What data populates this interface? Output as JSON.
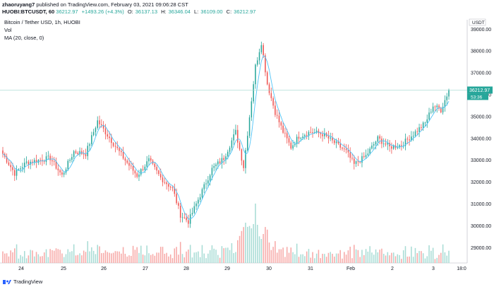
{
  "header": {
    "publisher": "zhaoruyang7",
    "published_text": "published on TradingView.com, February 03, 2021 09:06:28 CST",
    "symbol_interval": "HUOBI:BTCUSDT, 60",
    "last": "36212.97",
    "change": "+1493.26 (+4.3%)",
    "o_label": "O:",
    "o_value": "36137.13",
    "h_label": "H:",
    "h_value": "36346.04",
    "l_label": "L:",
    "l_value": "36109.00",
    "c_label": "C:",
    "c_value": "36212.97"
  },
  "legend": {
    "title": "Bitcoin / Tether USD, 1h, HUOBI",
    "vol": "Vol",
    "ma": "MA (20, close, 0)"
  },
  "footer": {
    "brand": "TradingView"
  },
  "colors": {
    "up": "#26a69a",
    "down": "#ef5350",
    "ma": "#4fc3f7",
    "vol_up": "#a8dcd5",
    "vol_down": "#f7a9a7",
    "price_line": "#9fd8cf"
  },
  "chart_data": {
    "type": "candlestick",
    "currency": "USDT",
    "y_ticks": [
      29000,
      30000,
      31000,
      32000,
      33000,
      34000,
      35000,
      36000,
      37000,
      38000,
      39000
    ],
    "y_tick_labels": [
      "29000.00",
      "30000.00",
      "31000.00",
      "32000.00",
      "33000.00",
      "34000.00",
      "35000.00",
      "36000.00",
      "37000.00",
      "38000.00",
      "39000.00"
    ],
    "ylim": [
      28300,
      39300
    ],
    "x_ticks": [
      "24",
      "25",
      "26",
      "27",
      "28",
      "29",
      "30",
      "31",
      "Feb",
      "2",
      "3",
      "18:0"
    ],
    "last_price_label": "36212.97",
    "countdown_label": "53:36",
    "price_anchors": [
      [
        0,
        33300
      ],
      [
        6,
        32400
      ],
      [
        12,
        32900
      ],
      [
        18,
        33000
      ],
      [
        24,
        33100
      ],
      [
        30,
        32300
      ],
      [
        36,
        33400
      ],
      [
        42,
        33300
      ],
      [
        48,
        34800
      ],
      [
        55,
        33900
      ],
      [
        62,
        33000
      ],
      [
        68,
        32300
      ],
      [
        74,
        33000
      ],
      [
        80,
        32200
      ],
      [
        86,
        31700
      ],
      [
        90,
        30500
      ],
      [
        94,
        30200
      ],
      [
        100,
        31400
      ],
      [
        106,
        32600
      ],
      [
        112,
        33100
      ],
      [
        118,
        34300
      ],
      [
        122,
        32700
      ],
      [
        125,
        35000
      ],
      [
        128,
        37300
      ],
      [
        131,
        38400
      ],
      [
        134,
        36500
      ],
      [
        138,
        35200
      ],
      [
        142,
        34300
      ],
      [
        146,
        33600
      ],
      [
        150,
        34100
      ],
      [
        156,
        34300
      ],
      [
        162,
        34200
      ],
      [
        168,
        33800
      ],
      [
        174,
        33400
      ],
      [
        178,
        32800
      ],
      [
        184,
        33200
      ],
      [
        190,
        34000
      ],
      [
        196,
        33600
      ],
      [
        202,
        33700
      ],
      [
        208,
        34200
      ],
      [
        214,
        34700
      ],
      [
        218,
        35500
      ],
      [
        222,
        35300
      ],
      [
        226,
        36212
      ]
    ],
    "ma_period": 20
  }
}
